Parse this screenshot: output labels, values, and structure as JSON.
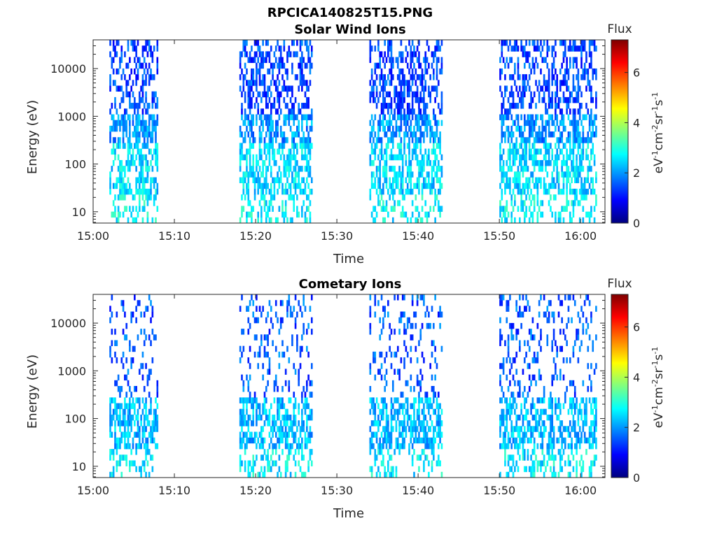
{
  "figure": {
    "title": "RPCICA140825T15.PNG"
  },
  "chart_data": [
    {
      "type": "heatmap",
      "title": "Solar Wind Ions",
      "xlabel": "Time",
      "ylabel": "Energy (eV)",
      "x_ticks": [
        "15:00",
        "15:10",
        "15:20",
        "15:30",
        "15:40",
        "15:50",
        "16:00"
      ],
      "y_ticks": [
        "10",
        "100",
        "1000",
        "10000"
      ],
      "y_scale": "log",
      "ylim": [
        5.8,
        40000
      ],
      "colorbar": {
        "label_top": "Flux",
        "units": "eV⁻¹cm⁻²sr⁻¹s⁻¹",
        "ticks": [
          "0",
          "2",
          "4",
          "6"
        ],
        "range": [
          0,
          7.3
        ],
        "colormap": "jet"
      },
      "data_intervals": [
        {
          "start": "15:02",
          "end": "15:08"
        },
        {
          "start": "15:18",
          "end": "15:27"
        },
        {
          "start": "15:34",
          "end": "15:43"
        },
        {
          "start": "15:50",
          "end": "16:02"
        }
      ],
      "grid": false
    },
    {
      "type": "heatmap",
      "title": "Cometary Ions",
      "xlabel": "Time",
      "ylabel": "Energy (eV)",
      "x_ticks": [
        "15:00",
        "15:10",
        "15:20",
        "15:30",
        "15:40",
        "15:50",
        "16:00"
      ],
      "y_ticks": [
        "10",
        "100",
        "1000",
        "10000"
      ],
      "y_scale": "log",
      "ylim": [
        5.8,
        40000
      ],
      "colorbar": {
        "label_top": "Flux",
        "units": "eV⁻¹cm⁻²sr⁻¹s⁻¹",
        "ticks": [
          "0",
          "2",
          "4",
          "6"
        ],
        "range": [
          0,
          7.3
        ],
        "colormap": "jet"
      },
      "data_intervals": [
        {
          "start": "15:02",
          "end": "15:08"
        },
        {
          "start": "15:18",
          "end": "15:27"
        },
        {
          "start": "15:34",
          "end": "15:43"
        },
        {
          "start": "15:50",
          "end": "16:02"
        }
      ],
      "grid": false
    }
  ]
}
